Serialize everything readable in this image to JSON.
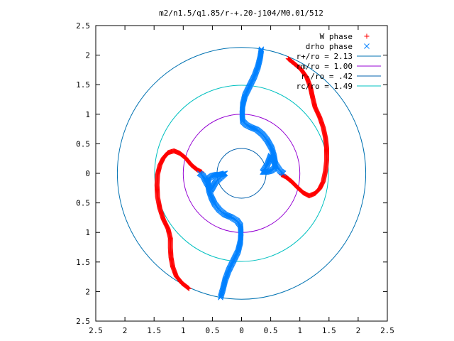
{
  "chart_data": {
    "type": "scatter",
    "title": "m2/n1.5/q1.85/r-+.20-j104/M0.01/512",
    "xlim": [
      -2.5,
      2.5
    ],
    "ylim": [
      -2.5,
      2.5
    ],
    "x_tick_labels": [
      "2.5",
      "2",
      "1.5",
      "1",
      "0.5",
      "0",
      "0.5",
      "1",
      "1.5",
      "2",
      "2.5"
    ],
    "y_tick_labels": [
      "2.5",
      "2",
      "1.5",
      "1",
      "0.5",
      "0",
      "0.5",
      "1",
      "1.5",
      "2",
      "2.5"
    ],
    "legend_position": "top-right",
    "grid": false,
    "circles": [
      {
        "label": "r+/ro = 2.13",
        "radius": 2.13,
        "color": "#0072b2"
      },
      {
        "label": "rm/ro = 1.00",
        "radius": 1.0,
        "color": "#9400d3"
      },
      {
        "label": "r-/ro = .42",
        "radius": 0.42,
        "color": "#0060ad"
      },
      {
        "label": "rc/ro = 1.49",
        "radius": 1.49,
        "color": "#00c0c0"
      }
    ],
    "series": [
      {
        "name": "W phase",
        "marker": "+",
        "color": "#ff0000",
        "arms": [
          [
            [
              0.8,
              1.94
            ],
            [
              0.9,
              1.86
            ],
            [
              1.02,
              1.76
            ],
            [
              1.12,
              1.62
            ],
            [
              1.18,
              1.46
            ],
            [
              1.22,
              1.28
            ],
            [
              1.26,
              1.12
            ],
            [
              1.34,
              0.95
            ],
            [
              1.4,
              0.78
            ],
            [
              1.44,
              0.6
            ],
            [
              1.46,
              0.42
            ],
            [
              1.46,
              0.22
            ],
            [
              1.44,
              0.04
            ],
            [
              1.4,
              -0.14
            ],
            [
              1.34,
              -0.26
            ],
            [
              1.26,
              -0.34
            ],
            [
              1.16,
              -0.38
            ],
            [
              1.06,
              -0.33
            ],
            [
              0.96,
              -0.24
            ],
            [
              0.86,
              -0.14
            ],
            [
              0.76,
              -0.06
            ],
            [
              0.68,
              -0.02
            ]
          ],
          [
            [
              -0.9,
              -1.95
            ],
            [
              -1.02,
              -1.86
            ],
            [
              -1.12,
              -1.74
            ],
            [
              -1.18,
              -1.58
            ],
            [
              -1.21,
              -1.42
            ],
            [
              -1.22,
              -1.26
            ],
            [
              -1.22,
              -1.1
            ],
            [
              -1.26,
              -0.94
            ],
            [
              -1.34,
              -0.78
            ],
            [
              -1.4,
              -0.6
            ],
            [
              -1.44,
              -0.4
            ],
            [
              -1.45,
              -0.2
            ],
            [
              -1.44,
              -0.02
            ],
            [
              -1.4,
              0.14
            ],
            [
              -1.34,
              0.26
            ],
            [
              -1.26,
              0.35
            ],
            [
              -1.16,
              0.38
            ],
            [
              -1.06,
              0.34
            ],
            [
              -0.96,
              0.26
            ],
            [
              -0.86,
              0.14
            ],
            [
              -0.76,
              0.06
            ],
            [
              -0.68,
              0.02
            ]
          ]
        ]
      },
      {
        "name": "drho phase",
        "marker": "x",
        "color": "#0080ff",
        "arms": [
          [
            [
              0.34,
              2.1
            ],
            [
              0.32,
              1.96
            ],
            [
              0.28,
              1.8
            ],
            [
              0.22,
              1.64
            ],
            [
              0.14,
              1.48
            ],
            [
              0.06,
              1.32
            ],
            [
              0.02,
              1.16
            ],
            [
              0.01,
              1.0
            ],
            [
              0.02,
              0.88
            ],
            [
              0.08,
              0.82
            ],
            [
              0.16,
              0.78
            ],
            [
              0.26,
              0.74
            ],
            [
              0.36,
              0.66
            ],
            [
              0.44,
              0.56
            ],
            [
              0.52,
              0.42
            ],
            [
              0.56,
              0.28
            ],
            [
              0.58,
              0.16
            ],
            [
              0.56,
              0.08
            ],
            [
              0.5,
              0.04
            ],
            [
              0.42,
              0.02
            ],
            [
              0.36,
              0.02
            ],
            [
              0.44,
              0.14
            ],
            [
              0.5,
              0.3
            ],
            [
              0.58,
              0.16
            ],
            [
              0.66,
              0.04
            ],
            [
              0.72,
              0.0
            ]
          ],
          [
            [
              -0.36,
              -2.1
            ],
            [
              -0.32,
              -1.96
            ],
            [
              -0.28,
              -1.8
            ],
            [
              -0.22,
              -1.64
            ],
            [
              -0.14,
              -1.48
            ],
            [
              -0.06,
              -1.32
            ],
            [
              -0.02,
              -1.16
            ],
            [
              -0.01,
              -1.0
            ],
            [
              -0.02,
              -0.88
            ],
            [
              -0.08,
              -0.8
            ],
            [
              -0.18,
              -0.74
            ],
            [
              -0.28,
              -0.7
            ],
            [
              -0.38,
              -0.62
            ],
            [
              -0.46,
              -0.52
            ],
            [
              -0.52,
              -0.4
            ],
            [
              -0.56,
              -0.28
            ],
            [
              -0.58,
              -0.16
            ],
            [
              -0.56,
              -0.08
            ],
            [
              -0.5,
              -0.04
            ],
            [
              -0.42,
              -0.02
            ],
            [
              -0.36,
              -0.02
            ],
            [
              -0.28,
              0.0
            ],
            [
              -0.44,
              -0.14
            ],
            [
              -0.52,
              -0.28
            ],
            [
              -0.6,
              -0.16
            ],
            [
              -0.66,
              -0.04
            ],
            [
              -0.72,
              0.0
            ]
          ]
        ]
      }
    ]
  }
}
